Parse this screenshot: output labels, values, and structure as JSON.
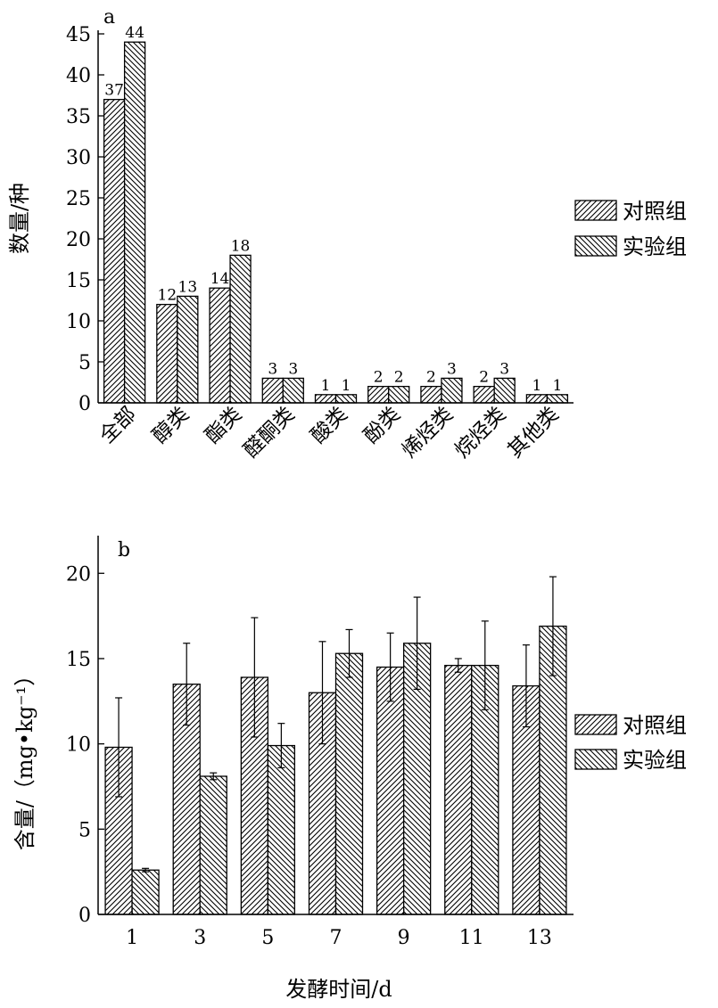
{
  "chart_data": [
    {
      "type": "bar",
      "panel_label": "a",
      "ylabel": "数量/种",
      "xlabel": "",
      "ylim": [
        0,
        45
      ],
      "yticks": [
        0,
        5,
        10,
        15,
        20,
        25,
        30,
        35,
        40,
        45
      ],
      "categories": [
        "全部",
        "醇类",
        "酯类",
        "醛酮类",
        "酸类",
        "酚类",
        "烯烃类",
        "烷烃类",
        "其他类"
      ],
      "series": [
        {
          "name": "对照组",
          "values": [
            37,
            12,
            14,
            3,
            1,
            2,
            2,
            2,
            1
          ]
        },
        {
          "name": "实验组",
          "values": [
            44,
            13,
            18,
            3,
            1,
            2,
            3,
            3,
            1
          ]
        }
      ],
      "data_labels": true,
      "legend_position": "right"
    },
    {
      "type": "bar",
      "panel_label": "b",
      "ylabel": "含量/（mg•kg⁻¹）",
      "xlabel": "发酵时间/d",
      "ylim": [
        0,
        22
      ],
      "yticks": [
        0,
        5,
        10,
        15,
        20
      ],
      "categories": [
        "1",
        "3",
        "5",
        "7",
        "9",
        "11",
        "13"
      ],
      "series": [
        {
          "name": "对照组",
          "values": [
            9.8,
            13.5,
            13.9,
            13.0,
            14.5,
            14.6,
            13.4
          ],
          "errors": [
            2.9,
            2.4,
            3.5,
            3.0,
            2.0,
            0.4,
            2.4
          ]
        },
        {
          "name": "实验组",
          "values": [
            2.6,
            8.1,
            9.9,
            15.3,
            15.9,
            14.6,
            16.9
          ],
          "errors": [
            0.1,
            0.2,
            1.3,
            1.4,
            2.7,
            2.6,
            2.9
          ]
        }
      ],
      "legend_position": "right"
    }
  ],
  "legend": {
    "control": "对照组",
    "experiment": "实验组"
  },
  "colors": {
    "ink": "#000000",
    "background": "#ffffff"
  }
}
